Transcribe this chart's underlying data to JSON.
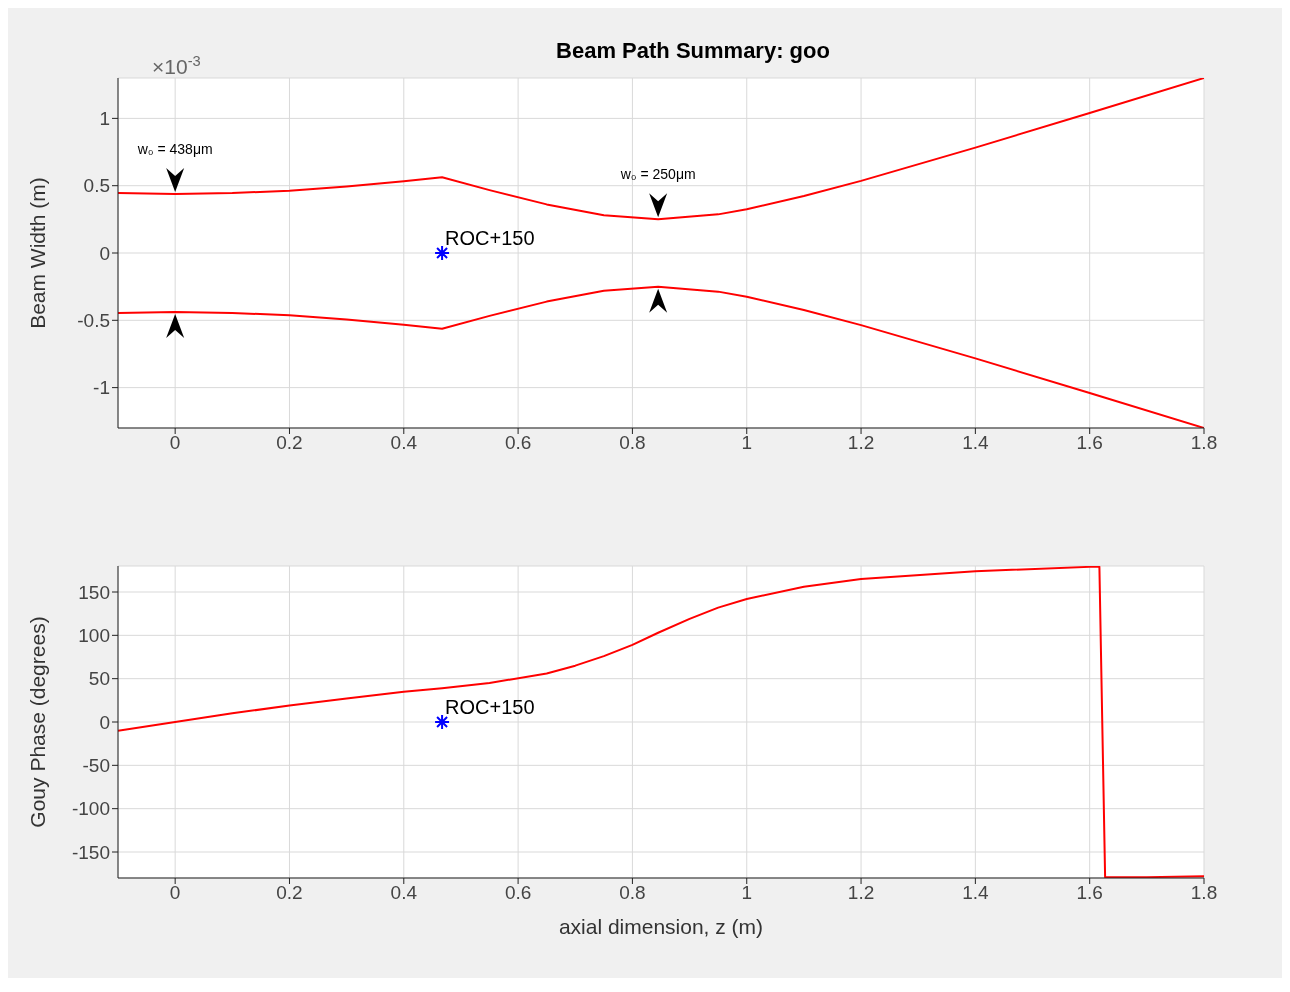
{
  "chart_data": [
    {
      "type": "line",
      "title": "Beam Path Summary: goo",
      "ylabel": "Beam Width (m)",
      "xlim": [
        -0.1,
        1.8
      ],
      "xticks": [
        0,
        0.2,
        0.4,
        0.6,
        0.8,
        1,
        1.2,
        1.4,
        1.6,
        1.8
      ],
      "ylim": [
        -1.3,
        1.3
      ],
      "yticks": [
        -1,
        -0.5,
        0,
        0.5,
        1
      ],
      "grid": true,
      "annotations": [
        "×10$^{-3}$",
        {
          "text": "w₀ = 438μm",
          "x": 0,
          "y": 0.438
        },
        {
          "text": "w₀ = 250μm",
          "x": 0.845,
          "y": 0.25
        }
      ],
      "series": [
        {
          "color": "#ff0000",
          "x": [
            -0.1,
            0,
            0.1,
            0.2,
            0.3,
            0.4,
            0.467,
            0.55,
            0.65,
            0.75,
            0.845,
            0.95,
            1.0,
            1.1,
            1.2,
            1.4,
            1.6,
            1.8
          ],
          "values": [
            0.445,
            0.438,
            0.445,
            0.463,
            0.494,
            0.533,
            0.563,
            0.467,
            0.361,
            0.28,
            0.25,
            0.287,
            0.325,
            0.423,
            0.536,
            0.783,
            1.04,
            1.3
          ]
        },
        {
          "color": "#ff0000",
          "x": [
            -0.1,
            0,
            0.1,
            0.2,
            0.3,
            0.4,
            0.467,
            0.55,
            0.65,
            0.75,
            0.845,
            0.95,
            1.0,
            1.1,
            1.2,
            1.4,
            1.6,
            1.8
          ],
          "values": [
            -0.445,
            -0.438,
            -0.445,
            -0.463,
            -0.494,
            -0.533,
            -0.563,
            -0.467,
            -0.361,
            -0.28,
            -0.25,
            -0.287,
            -0.325,
            -0.423,
            -0.536,
            -0.783,
            -1.04,
            -1.3
          ]
        },
        {
          "type": "scatter",
          "name": "ROC+150",
          "color": "#0000ff",
          "marker": "cross",
          "x": [
            0.467
          ],
          "values": [
            0
          ]
        }
      ]
    },
    {
      "type": "line",
      "xlabel": "axial dimension, z (m)",
      "ylabel": "Gouy Phase (degrees)",
      "xlim": [
        -0.1,
        1.8
      ],
      "xticks": [
        0,
        0.2,
        0.4,
        0.6,
        0.8,
        1,
        1.2,
        1.4,
        1.6,
        1.8
      ],
      "ylim": [
        -180,
        180
      ],
      "yticks": [
        -150,
        -100,
        -50,
        0,
        50,
        100,
        150
      ],
      "grid": true,
      "series": [
        {
          "color": "#ff0000",
          "x": [
            -0.1,
            0,
            0.1,
            0.2,
            0.3,
            0.4,
            0.467,
            0.55,
            0.65,
            0.7,
            0.75,
            0.8,
            0.845,
            0.9,
            0.95,
            1.0,
            1.1,
            1.2,
            1.4,
            1.6,
            1.617,
            1.627,
            1.7,
            1.8
          ],
          "values": [
            -10,
            0,
            10,
            19,
            27,
            35,
            39,
            45,
            56,
            65,
            76,
            89,
            103,
            119,
            132,
            142,
            156,
            165,
            174,
            179,
            179,
            -179,
            -179,
            -178
          ]
        },
        {
          "type": "scatter",
          "name": "ROC+150",
          "color": "#0000ff",
          "marker": "cross",
          "x": [
            0.467
          ],
          "values": [
            0
          ]
        }
      ]
    }
  ]
}
